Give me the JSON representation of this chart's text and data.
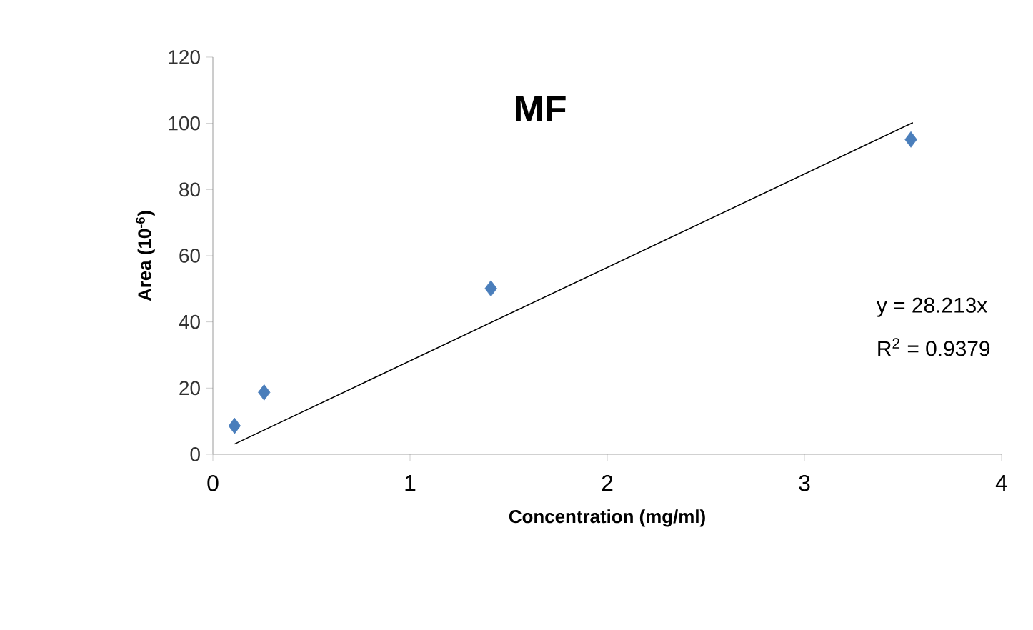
{
  "chart_data": {
    "type": "scatter",
    "title": "MF",
    "xlabel": "Concentration (mg/ml)",
    "ylabel": "Area (10$^{-6}$)",
    "xlim": [
      0,
      4
    ],
    "xticks": [
      0,
      1,
      2,
      3,
      4
    ],
    "ylim": [
      0,
      120
    ],
    "yticks": [
      0,
      20,
      40,
      60,
      80,
      100,
      120
    ],
    "grid": false,
    "marker": "diamond",
    "series": [
      {
        "color": "#4a7ebb",
        "x": [
          0.11,
          0.26,
          1.41,
          3.54
        ],
        "values": [
          8.6,
          18.7,
          50.1,
          95.1
        ]
      },
      {
        "type": "line",
        "marker": "none",
        "color": "#000000",
        "x": [
          0.11,
          3.55
        ],
        "values": [
          3.1,
          100.2
        ]
      }
    ],
    "annotations": [
      "y = 28.213x",
      "R$^{2}$ = 0.9379"
    ]
  }
}
